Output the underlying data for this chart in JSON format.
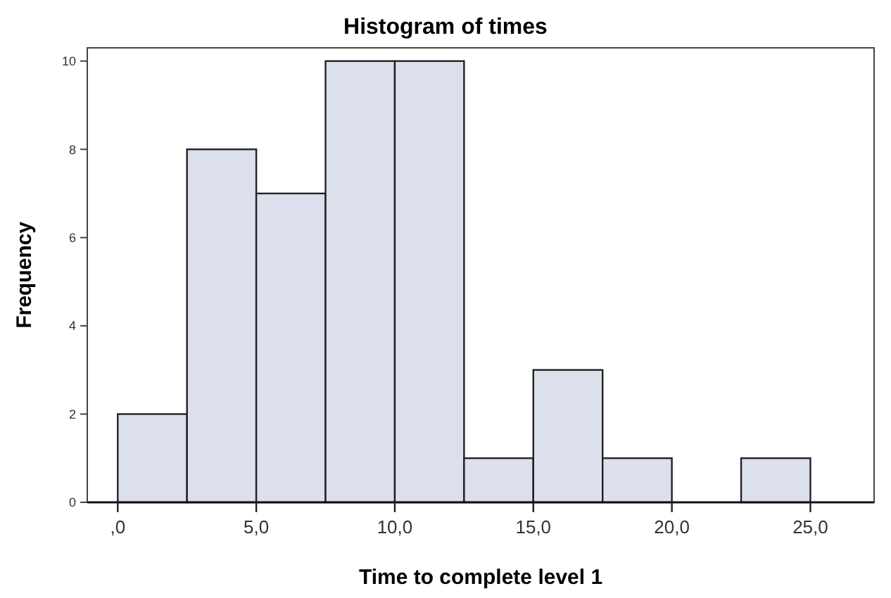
{
  "chart_data": {
    "type": "histogram",
    "title": "Histogram of times",
    "xlabel": "Time to complete level 1",
    "ylabel": "Frequency",
    "bins": [
      0,
      2.5,
      5,
      7.5,
      10,
      12.5,
      15,
      17.5,
      20,
      22.5,
      25
    ],
    "values": [
      2,
      8,
      7,
      10,
      10,
      1,
      3,
      1,
      0,
      1
    ],
    "color": "#dcdfec",
    "xlim": [
      -1.1,
      27.3
    ],
    "ylim": [
      0,
      10.3
    ],
    "xticks": [
      {
        "value": 0,
        "label": ",0"
      },
      {
        "value": 5,
        "label": "5,0"
      },
      {
        "value": 10,
        "label": "10,0"
      },
      {
        "value": 15,
        "label": "15,0"
      },
      {
        "value": 20,
        "label": "20,0"
      },
      {
        "value": 25,
        "label": "25,0"
      }
    ],
    "yticks": [
      0,
      2,
      4,
      6,
      8,
      10
    ],
    "grid": false
  }
}
